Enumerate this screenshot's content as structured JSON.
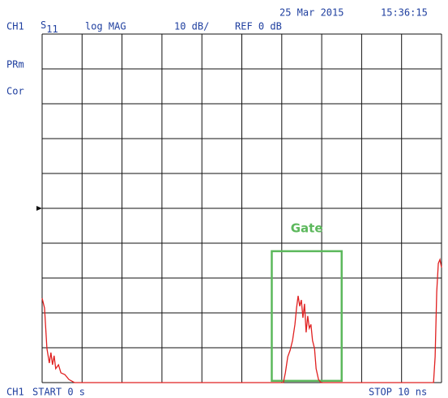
{
  "chart_data": {
    "type": "line",
    "date": "25 Mar 2015",
    "time": "15:36:15",
    "channel": "CH1",
    "parameter": "S",
    "parameter_sub": "11",
    "format": "log MAG",
    "scale": "10 dB/",
    "reference": "REF 0 dB",
    "ref_level": 0,
    "status": [
      "PRm",
      "Cor"
    ],
    "start_channel": "CH1",
    "start": "START 0 s",
    "stop": "STOP 10 ns",
    "color": "#e02020",
    "x": [
      0,
      0.06,
      0.12,
      0.18,
      0.22,
      0.26,
      0.3,
      0.34,
      0.41,
      0.47,
      0.57,
      0.67,
      0.81,
      6.04,
      6.09,
      6.15,
      6.21,
      6.27,
      6.33,
      6.37,
      6.41,
      6.45,
      6.49,
      6.53,
      6.57,
      6.61,
      6.65,
      6.69,
      6.73,
      6.77,
      6.82,
      6.86,
      6.92,
      6.98,
      9.8,
      9.84,
      9.88,
      9.92,
      9.96,
      10
    ],
    "values": [
      -25.8,
      -28.6,
      -40.2,
      -44.4,
      -41.4,
      -44.9,
      -42.3,
      -46,
      -44.9,
      -47.2,
      -47.7,
      -49.1,
      -50,
      -50,
      -47.2,
      -42.6,
      -40.7,
      -37.9,
      -33.3,
      -28.6,
      -25.1,
      -28.1,
      -26.3,
      -31.4,
      -27.4,
      -35.6,
      -30.9,
      -34.4,
      -33.3,
      -37.9,
      -40.2,
      -46,
      -49.1,
      -50,
      -50,
      -42.6,
      -24,
      -15.8,
      -14.7,
      -17
    ],
    "xlim": [
      0,
      10
    ],
    "xticks": [
      0,
      1,
      2,
      3,
      4,
      5,
      6,
      7,
      8,
      9,
      10
    ],
    "ylim": [
      -50,
      50
    ],
    "yticks": [
      -50,
      -40,
      -30,
      -20,
      -10,
      0,
      10,
      20,
      30,
      40,
      50
    ],
    "grid": true,
    "gate": {
      "label": "Gate",
      "x": [
        5.75,
        7.5
      ],
      "y": [
        -12.3,
        -49.5
      ],
      "color": "#5cb85c"
    }
  }
}
